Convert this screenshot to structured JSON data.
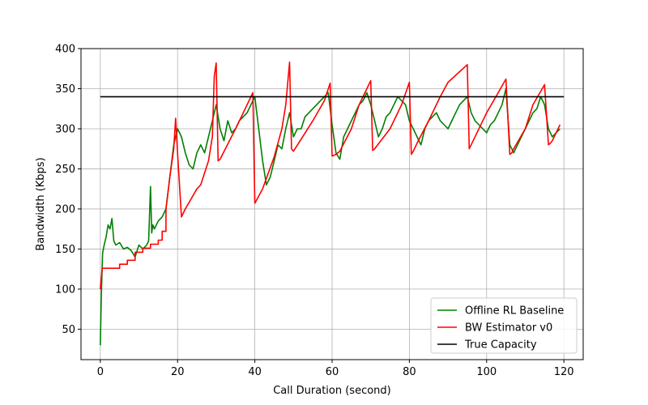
{
  "chart_data": {
    "type": "line",
    "title": "",
    "xlabel": "Call Duration (second)",
    "ylabel": "Bandwidth (Kbps)",
    "xlim": [
      -5,
      125
    ],
    "ylim": [
      12,
      400
    ],
    "xticks": [
      0,
      20,
      40,
      60,
      80,
      100,
      120
    ],
    "yticks": [
      50,
      100,
      150,
      200,
      250,
      300,
      350,
      400
    ],
    "grid": true,
    "legend_position": "lower-right",
    "series": [
      {
        "name": "Offline RL Baseline",
        "color": "#008000",
        "x": [
          0,
          0.3,
          0.6,
          1,
          1.5,
          2,
          2.5,
          3,
          3.5,
          4,
          5,
          6,
          7,
          8,
          9,
          10,
          11,
          12,
          12.5,
          13,
          13.3,
          13.6,
          14,
          15,
          16,
          16.5,
          17,
          18,
          19,
          20,
          21,
          22,
          23,
          24,
          25,
          26,
          27,
          28,
          29,
          30,
          31,
          32,
          33,
          34,
          35,
          36,
          37,
          38,
          39,
          40,
          41,
          42,
          43,
          44,
          45,
          46,
          47,
          48,
          49,
          50,
          51,
          52,
          53,
          54,
          55,
          56,
          57,
          58,
          59,
          60,
          61,
          62,
          63,
          64,
          65,
          66,
          67,
          68,
          69,
          70,
          71,
          72,
          73,
          74,
          75,
          76,
          77,
          78,
          79,
          80,
          81,
          82,
          83,
          84,
          85,
          86,
          87,
          88,
          89,
          90,
          91,
          92,
          93,
          94,
          95,
          96,
          97,
          98,
          99,
          100,
          101,
          102,
          103,
          104,
          105,
          106,
          107,
          108,
          109,
          110,
          111,
          112,
          113,
          114,
          115,
          116,
          117,
          118,
          119
        ],
        "y": [
          30,
          100,
          145,
          155,
          165,
          180,
          175,
          188,
          160,
          155,
          158,
          150,
          152,
          148,
          140,
          155,
          150,
          155,
          160,
          228,
          170,
          180,
          175,
          185,
          190,
          195,
          200,
          240,
          280,
          300,
          290,
          270,
          255,
          250,
          270,
          280,
          270,
          290,
          310,
          330,
          300,
          285,
          310,
          295,
          300,
          310,
          315,
          320,
          330,
          340,
          300,
          260,
          230,
          240,
          260,
          280,
          275,
          300,
          320,
          290,
          300,
          300,
          315,
          320,
          325,
          330,
          335,
          340,
          345,
          305,
          270,
          262,
          290,
          300,
          310,
          320,
          330,
          335,
          345,
          330,
          310,
          290,
          300,
          315,
          320,
          330,
          340,
          335,
          330,
          310,
          300,
          290,
          280,
          300,
          310,
          315,
          320,
          310,
          305,
          300,
          310,
          320,
          330,
          335,
          340,
          320,
          310,
          305,
          300,
          295,
          305,
          310,
          320,
          330,
          350,
          280,
          270,
          280,
          290,
          300,
          310,
          320,
          325,
          340,
          330,
          300,
          290,
          295,
          300
        ]
      },
      {
        "name": "BW Estimator v0",
        "color": "#ff0000",
        "x": [
          0,
          0.5,
          3,
          5,
          5,
          7,
          7,
          9,
          9,
          11,
          11,
          13,
          13,
          15,
          15,
          16,
          16,
          17,
          17,
          18,
          19,
          19.5,
          20,
          21,
          22,
          25,
          26,
          28,
          29,
          29.5,
          30,
          30.5,
          31,
          35,
          38,
          39.5,
          40,
          42,
          45,
          47,
          48,
          49,
          49.5,
          50,
          55,
          58,
          59.5,
          60,
          61,
          62,
          65,
          67,
          69,
          70,
          70.5,
          71,
          75,
          78,
          80,
          80.5,
          81,
          82,
          85,
          88,
          90,
          95,
          95.5,
          96,
          100,
          103,
          105,
          106,
          106.5,
          107,
          110,
          112,
          115,
          116,
          116.5,
          117,
          119
        ],
        "y": [
          100,
          126,
          126,
          126,
          131,
          131,
          136,
          136,
          146,
          146,
          151,
          151,
          156,
          156,
          161,
          161,
          172,
          172,
          200,
          240,
          275,
          313,
          270,
          190,
          200,
          225,
          230,
          260,
          290,
          365,
          382,
          260,
          262,
          300,
          330,
          345,
          207,
          225,
          265,
          300,
          330,
          383,
          275,
          272,
          310,
          335,
          357,
          266,
          268,
          272,
          300,
          330,
          350,
          360,
          273,
          275,
          300,
          330,
          358,
          268,
          272,
          282,
          310,
          340,
          358,
          380,
          275,
          280,
          320,
          345,
          362,
          268,
          270,
          275,
          300,
          330,
          355,
          280,
          282,
          285,
          305
        ]
      },
      {
        "name": "True Capacity",
        "color": "#000000",
        "x": [
          0,
          120
        ],
        "y": [
          340,
          340
        ]
      }
    ]
  }
}
